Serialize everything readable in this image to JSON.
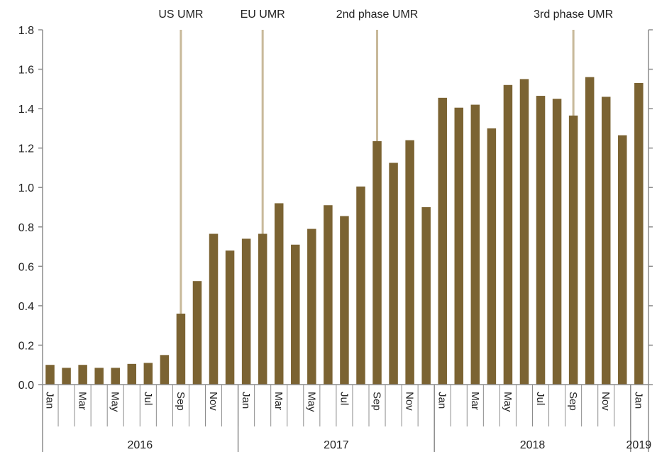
{
  "chart_data": {
    "type": "bar",
    "title": "",
    "xlabel": "",
    "ylabel": "",
    "ylim": [
      0,
      1.8
    ],
    "yticks": [
      "0.0",
      "0.2",
      "0.4",
      "0.6",
      "0.8",
      "1.0",
      "1.2",
      "1.4",
      "1.6",
      "1.8"
    ],
    "categories": [
      "Jan 2016",
      "Feb 2016",
      "Mar 2016",
      "Apr 2016",
      "May 2016",
      "Jun 2016",
      "Jul 2016",
      "Aug 2016",
      "Sep 2016",
      "Oct 2016",
      "Nov 2016",
      "Dec 2016",
      "Jan 2017",
      "Feb 2017",
      "Mar 2017",
      "Apr 2017",
      "May 2017",
      "Jun 2017",
      "Jul 2017",
      "Aug 2017",
      "Sep 2017",
      "Oct 2017",
      "Nov 2017",
      "Dec 2017",
      "Jan 2018",
      "Feb 2018",
      "Mar 2018",
      "Apr 2018",
      "May 2018",
      "Jun 2018",
      "Jul 2018",
      "Aug 2018",
      "Sep 2018",
      "Oct 2018",
      "Nov 2018",
      "Dec 2018",
      "Jan 2019"
    ],
    "month_labels": [
      "Jan",
      "",
      "Mar",
      "",
      "May",
      "",
      "Jul",
      "",
      "Sep",
      "",
      "Nov",
      "",
      "Jan",
      "",
      "Mar",
      "",
      "May",
      "",
      "Jul",
      "",
      "Sep",
      "",
      "Nov",
      "",
      "Jan",
      "",
      "Mar",
      "",
      "May",
      "",
      "Jul",
      "",
      "Sep",
      "",
      "Nov",
      "",
      "Jan"
    ],
    "values": [
      0.1,
      0.085,
      0.1,
      0.085,
      0.085,
      0.105,
      0.11,
      0.15,
      0.36,
      0.525,
      0.765,
      0.68,
      0.74,
      0.765,
      0.92,
      0.71,
      0.79,
      0.91,
      0.855,
      1.005,
      1.235,
      1.125,
      1.24,
      0.9,
      1.455,
      1.405,
      1.42,
      1.3,
      1.52,
      1.55,
      1.465,
      1.45,
      1.365,
      1.56,
      1.46,
      1.265,
      1.53
    ],
    "years": [
      {
        "label": "2016",
        "start_index": 0,
        "end_index": 11
      },
      {
        "label": "2017",
        "start_index": 12,
        "end_index": 23
      },
      {
        "label": "2018",
        "start_index": 24,
        "end_index": 35
      },
      {
        "label": "2019",
        "start_index": 36,
        "end_index": 36
      }
    ],
    "annotations": [
      {
        "label": "US UMR",
        "at_index": 8
      },
      {
        "label": "EU UMR",
        "at_index": 13
      },
      {
        "label": "2nd phase UMR",
        "at_index": 20
      },
      {
        "label": "3rd phase UMR",
        "at_index": 32
      }
    ],
    "legend": "none",
    "grid": false
  },
  "colors": {
    "bar": "#7b6332",
    "annotation_line": "#c8b99a",
    "axis": "#8c8c8c",
    "text": "#222222"
  }
}
